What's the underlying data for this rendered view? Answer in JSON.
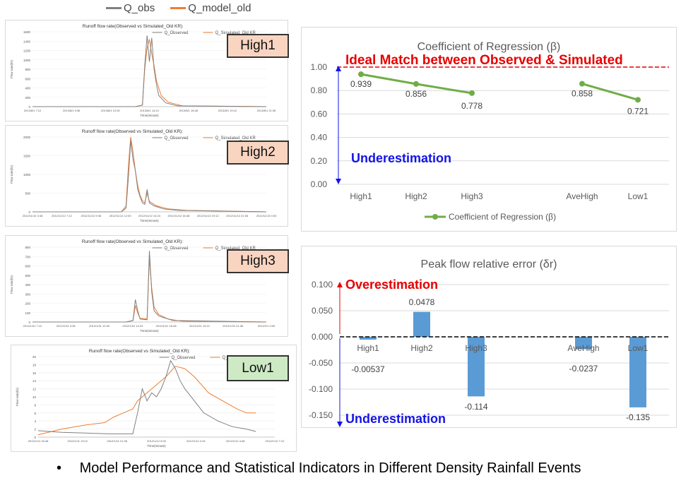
{
  "top_legend": {
    "items": [
      {
        "label": "Q_obs",
        "color": "#808080"
      },
      {
        "label": "Q_model_old",
        "color": "#ed7d31"
      }
    ]
  },
  "hydrographs": [
    {
      "tag": "High1",
      "title": "Runoff flow rate(Observed vs Simulated_Old KR)",
      "legend": [
        "Q_Observed",
        "Q_Simulated_Old KR"
      ],
      "ylabel": "Flow rate(l/s)",
      "xlabel": "Time(minute)",
      "yticks": [
        "0",
        "200",
        "400",
        "600",
        "800",
        "1000",
        "1200",
        "1400",
        "1600"
      ],
      "xticks": [
        "2013/8/1 7:12",
        "2013/8/1 9:36",
        "2013/8/1 12:00",
        "2013/8/1 14:24",
        "2013/8/1 16:48",
        "2013/8/1 19:12",
        "2013/8/1 21:36"
      ]
    },
    {
      "tag": "High2",
      "title": "Runoff flow rate(Observed vs Simulated_Old KR):",
      "legend": [
        "Q_Observed",
        "Q_Simulated_Old KR"
      ],
      "ylabel": "Flow rate(l/s)",
      "xlabel": "Time(minute)",
      "yticks": [
        "0",
        "500",
        "1000",
        "1500",
        "2000"
      ],
      "xticks": [
        "2012/11/12 4:48",
        "2012/11/12 7:12",
        "2012/11/12 9:36",
        "2012/11/12 12:00",
        "2012/11/12 14:24",
        "2012/11/12 16:48",
        "2012/11/12 19:12",
        "2012/11/12 21:36",
        "2012/11/13 0:00"
      ]
    },
    {
      "tag": "High3",
      "title": "Runoff flow rate(Observed vs Simulated_Old KR):",
      "legend": [
        "Q_Observed",
        "Q_Simulated_Old KR"
      ],
      "ylabel": "Flow rate(l/s)",
      "xlabel": "Time(minute)",
      "yticks": [
        "0",
        "100",
        "200",
        "300",
        "400",
        "500",
        "600",
        "700",
        "800"
      ],
      "xticks": [
        "2012/1/31 7:12",
        "2012/1/31 9:36",
        "2012/1/31 12:00",
        "2012/1/31 14:24",
        "2012/1/31 16:48",
        "2012/1/31 19:12",
        "2012/1/31 21:36",
        "2012/2/1 0:00"
      ]
    },
    {
      "tag": "Low1",
      "title": "Runoff flow rate(Observed vs Simulated_Old KR):",
      "legend": [
        "Q_Observed",
        "Q_Simulated_Old KR"
      ],
      "ylabel": "Flow rate(l/s)",
      "xlabel": "Time(minute)",
      "yticks": [
        "0",
        "2",
        "4",
        "6",
        "8",
        "10",
        "12",
        "14",
        "16",
        "18",
        "20"
      ],
      "xticks": [
        "2012/1/11 16:48",
        "2012/1/11 19:12",
        "2012/1/11 21:36",
        "2012/1/12 0:00",
        "2012/1/12 2:24",
        "2012/1/12 4:48",
        "2012/1/12 7:12"
      ]
    }
  ],
  "colors": {
    "observed": "#808080",
    "simulated": "#ed7d31",
    "green": "#70ad47",
    "blue": "#5b9bd5",
    "red": "#e60000",
    "darkblue": "#1414e6"
  },
  "chart_data": [
    {
      "type": "line",
      "title": "Coefficient of Regression (β)",
      "categories": [
        "High1",
        "High2",
        "High3",
        "AveHigh",
        "Low1"
      ],
      "series": [
        {
          "name": "Coefficient of Regression (β)",
          "values": [
            0.939,
            0.856,
            0.778,
            0.858,
            0.721
          ],
          "segments": [
            [
              0,
              2
            ],
            [
              3,
              4
            ]
          ]
        }
      ],
      "value_labels": [
        "0.939",
        "0.856",
        "0.778",
        "0.858",
        "0.721"
      ],
      "yticks": [
        "0.00",
        "0.20",
        "0.40",
        "0.60",
        "0.80",
        "1.00"
      ],
      "ylim": [
        0,
        1.0
      ],
      "legend": "bottom",
      "reference_line": {
        "value": 1.0,
        "label": "Ideal Match between Observed & Simulated"
      },
      "annotations": [
        {
          "text": "Underestimation"
        }
      ]
    },
    {
      "type": "bar",
      "title": "Peak flow relative error (δr)",
      "categories": [
        "High1",
        "High2",
        "High3",
        "AveHigh",
        "Low1"
      ],
      "series": [
        {
          "values": [
            -0.00537,
            0.0478,
            -0.114,
            -0.0237,
            -0.135
          ]
        }
      ],
      "value_labels": [
        "-0.00537",
        "0.0478",
        "-0.114",
        "-0.0237",
        "-0.135"
      ],
      "yticks": [
        "-0.150",
        "-0.100",
        "-0.050",
        "0.000",
        "0.050",
        "0.100"
      ],
      "ylim": [
        -0.15,
        0.1
      ],
      "reference_line": {
        "value": 0.0
      },
      "annotations": [
        {
          "text": "Overestimation"
        },
        {
          "text": "Underestimation"
        }
      ]
    }
  ],
  "footer": {
    "bullet": "•",
    "text": "Model Performance and Statistical Indicators in Different Density Rainfall Events"
  }
}
